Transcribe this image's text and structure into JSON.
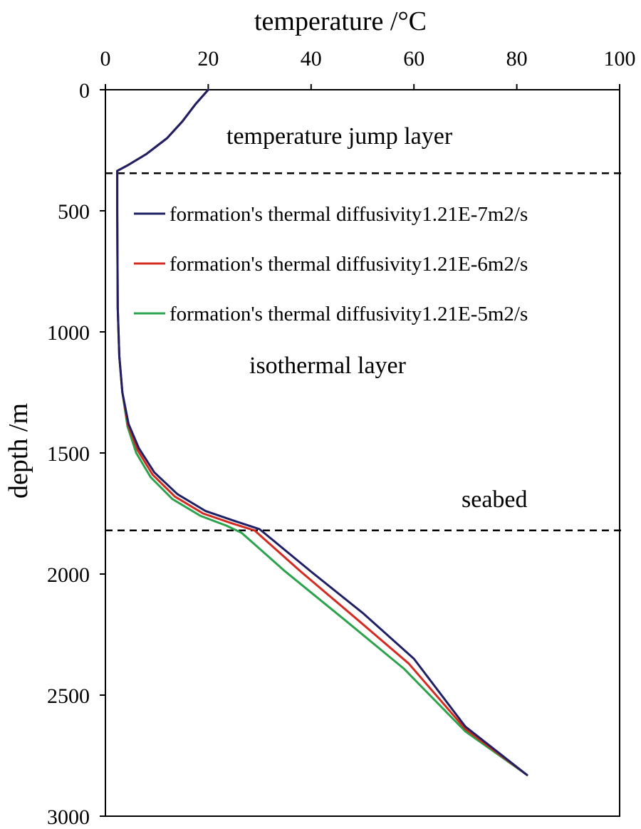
{
  "chart_data": {
    "type": "line",
    "x_axis": {
      "label": "temperature /°C",
      "position": "top",
      "range": [
        0,
        100
      ],
      "ticks": [
        0,
        20,
        40,
        60,
        80,
        100
      ],
      "tick_labels": [
        "0",
        "20",
        "40",
        "60",
        "80",
        "100"
      ]
    },
    "y_axis": {
      "label": "depth /m",
      "range": [
        0,
        3000
      ],
      "inverted": true,
      "ticks": [
        0,
        500,
        1000,
        1500,
        2000,
        2500,
        3000
      ],
      "tick_labels": [
        "0",
        "500",
        "1000",
        "1500",
        "2000",
        "2500",
        "3000"
      ]
    },
    "grid": false,
    "legend": {
      "placement": "upper-center",
      "entries": [
        "formation's thermal diffusivity1.21E-7m2/s",
        "formation's thermal diffusivity1.21E-6m2/s",
        "formation's thermal diffusivity1.21E-5m2/s"
      ]
    },
    "series": [
      {
        "name": "formation's thermal diffusivity1.21E-7m2/s",
        "color": "#1f1f66",
        "points": [
          [
            20,
            0
          ],
          [
            17.5,
            60
          ],
          [
            15,
            130
          ],
          [
            12,
            200
          ],
          [
            8,
            265
          ],
          [
            4.5,
            310
          ],
          [
            2.3,
            335
          ],
          [
            2.3,
            500
          ],
          [
            2.4,
            900
          ],
          [
            2.7,
            1100
          ],
          [
            3.3,
            1250
          ],
          [
            4.5,
            1380
          ],
          [
            6.5,
            1480
          ],
          [
            9.5,
            1580
          ],
          [
            14,
            1670
          ],
          [
            19.5,
            1740
          ],
          [
            25,
            1780
          ],
          [
            30,
            1815
          ],
          [
            40,
            1990
          ],
          [
            50,
            2160
          ],
          [
            60,
            2350
          ],
          [
            70,
            2630
          ],
          [
            82,
            2830
          ]
        ]
      },
      {
        "name": "formation's thermal diffusivity1.21E-6m2/s",
        "color": "#d42a20",
        "points": [
          [
            20,
            0
          ],
          [
            17.5,
            60
          ],
          [
            15,
            130
          ],
          [
            12,
            200
          ],
          [
            8,
            265
          ],
          [
            4.5,
            310
          ],
          [
            2.3,
            335
          ],
          [
            2.3,
            500
          ],
          [
            2.4,
            900
          ],
          [
            2.7,
            1100
          ],
          [
            3.3,
            1250
          ],
          [
            4.4,
            1385
          ],
          [
            6.3,
            1490
          ],
          [
            9.2,
            1590
          ],
          [
            13.5,
            1680
          ],
          [
            19,
            1750
          ],
          [
            24.5,
            1790
          ],
          [
            29,
            1820
          ],
          [
            38,
            1990
          ],
          [
            48,
            2170
          ],
          [
            59,
            2370
          ],
          [
            70,
            2640
          ],
          [
            82,
            2830
          ]
        ]
      },
      {
        "name": "formation's thermal diffusivity1.21E-5m2/s",
        "color": "#2ba24c",
        "points": [
          [
            20,
            0
          ],
          [
            17.5,
            60
          ],
          [
            15,
            130
          ],
          [
            12,
            200
          ],
          [
            8,
            265
          ],
          [
            4.5,
            310
          ],
          [
            2.3,
            335
          ],
          [
            2.3,
            500
          ],
          [
            2.4,
            900
          ],
          [
            2.7,
            1100
          ],
          [
            3.3,
            1250
          ],
          [
            4.3,
            1390
          ],
          [
            6,
            1500
          ],
          [
            8.8,
            1600
          ],
          [
            13,
            1690
          ],
          [
            18.5,
            1760
          ],
          [
            23.5,
            1800
          ],
          [
            26.5,
            1830
          ],
          [
            35,
            1990
          ],
          [
            46,
            2180
          ],
          [
            58,
            2390
          ],
          [
            70,
            2650
          ],
          [
            82,
            2830
          ]
        ]
      }
    ],
    "reference_lines": [
      {
        "name": "temperature jump layer boundary",
        "depth": 345,
        "style": "dashed"
      },
      {
        "name": "seabed",
        "depth": 1820,
        "style": "dashed"
      }
    ],
    "annotations": {
      "temperature_jump_layer": "temperature jump layer",
      "isothermal_layer": "isothermal layer",
      "seabed": "seabed"
    }
  }
}
